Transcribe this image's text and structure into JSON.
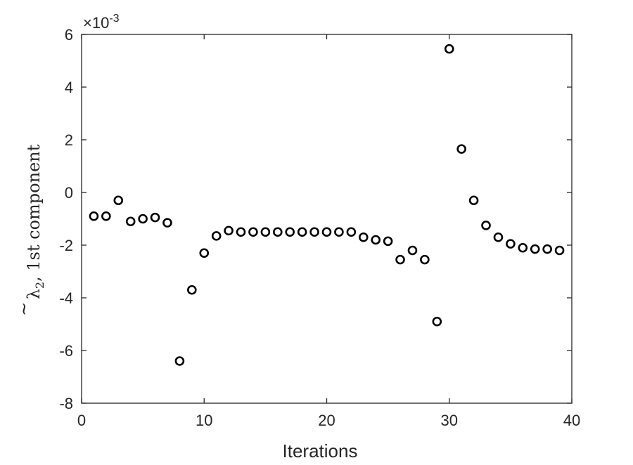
{
  "chart_data": {
    "type": "scatter",
    "title": "",
    "xlabel": "Iterations",
    "ylabel_prefix": "λ",
    "ylabel_sub": "2",
    "ylabel_rest": ", 1st component",
    "y_multiplier_base": "×10",
    "y_multiplier_exp": "-3",
    "xlim": [
      0,
      40
    ],
    "ylim": [
      -8,
      6
    ],
    "xticks": [
      0,
      10,
      20,
      30,
      40
    ],
    "yticks": [
      -8,
      -6,
      -4,
      -2,
      0,
      2,
      4,
      6
    ],
    "xtick_labels": [
      "0",
      "10",
      "20",
      "30",
      "40"
    ],
    "ytick_labels": [
      "-8",
      "-6",
      "-4",
      "-2",
      "0",
      "2",
      "4",
      "6"
    ],
    "grid": false,
    "marker": "open-circle",
    "marker_color": "#000000",
    "x": [
      1,
      2,
      3,
      4,
      5,
      6,
      7,
      8,
      9,
      10,
      11,
      12,
      13,
      14,
      15,
      16,
      17,
      18,
      19,
      20,
      21,
      22,
      23,
      24,
      25,
      26,
      27,
      28,
      29,
      30,
      31,
      32,
      33,
      34,
      35,
      36,
      37,
      38,
      39
    ],
    "y": [
      -0.9,
      -0.9,
      -0.3,
      -1.1,
      -1.0,
      -0.95,
      -1.15,
      -6.4,
      -3.7,
      -2.3,
      -1.65,
      -1.45,
      -1.5,
      -1.5,
      -1.5,
      -1.5,
      -1.5,
      -1.5,
      -1.5,
      -1.5,
      -1.5,
      -1.5,
      -1.7,
      -1.8,
      -1.85,
      -2.55,
      -2.2,
      -2.55,
      -4.9,
      5.45,
      1.65,
      -0.3,
      -1.25,
      -1.7,
      -1.95,
      -2.1,
      -2.15,
      -2.15,
      -2.2
    ]
  }
}
